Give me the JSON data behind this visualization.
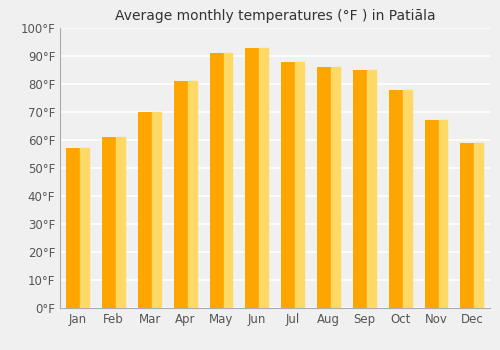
{
  "months": [
    "Jan",
    "Feb",
    "Mar",
    "Apr",
    "May",
    "Jun",
    "Jul",
    "Aug",
    "Sep",
    "Oct",
    "Nov",
    "Dec"
  ],
  "temps_f": [
    57,
    61,
    70,
    81,
    91,
    93,
    88,
    86,
    85,
    78,
    67,
    59
  ],
  "bar_color_main": "#FFA500",
  "bar_color_light": "#FFD966",
  "title": "Average monthly temperatures (°F ) in Patiāla",
  "ylim": [
    0,
    100
  ],
  "yticks": [
    0,
    10,
    20,
    30,
    40,
    50,
    60,
    70,
    80,
    90,
    100
  ],
  "ytick_labels": [
    "0°F",
    "10°F",
    "20°F",
    "30°F",
    "40°F",
    "50°F",
    "60°F",
    "70°F",
    "80°F",
    "90°F",
    "100°F"
  ],
  "background_color": "#f0f0f0",
  "grid_color": "#ffffff",
  "title_fontsize": 10,
  "tick_fontsize": 8.5
}
